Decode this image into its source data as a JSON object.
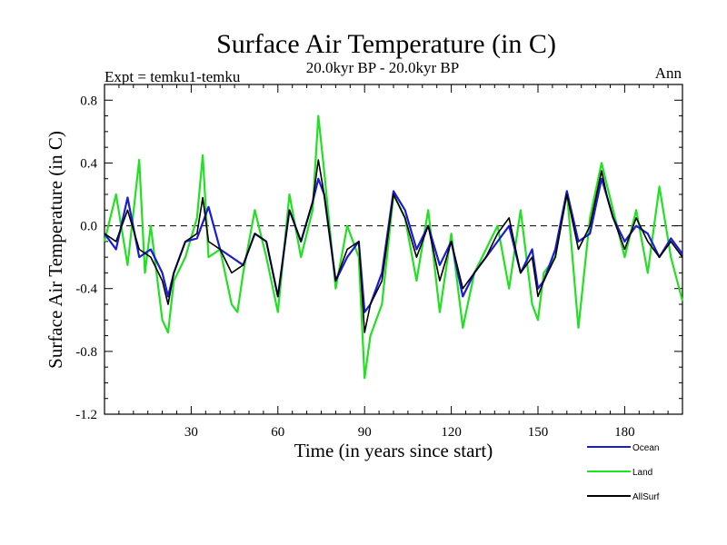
{
  "chart_data": {
    "type": "line",
    "title": "Surface Air Temperature (in C)",
    "subtitle_left": "Expt = temku1-temku",
    "subtitle_center": "20.0kyr BP - 20.0kyr BP",
    "subtitle_right": "Ann",
    "xlabel": "Time (in years since start)",
    "ylabel": "Surface Air Temperature (in C)",
    "xlim": [
      0,
      200
    ],
    "ylim": [
      -1.2,
      0.9
    ],
    "xticks": [
      30,
      60,
      90,
      120,
      150,
      180
    ],
    "xtick_labels": [
      "30",
      "60",
      "90",
      "120",
      "150",
      "180"
    ],
    "yticks": [
      0.8,
      0.4,
      0.0,
      -0.4,
      -0.8,
      -1.2
    ],
    "ytick_labels": [
      "0.8",
      "0.4",
      "0.0",
      "-0.4",
      "-0.8",
      "-1.2"
    ],
    "zero_line": true,
    "legend_position": "bottom-right",
    "series": [
      {
        "name": "Ocean",
        "color": "#1a1ad8",
        "x": [
          0,
          4,
          8,
          12,
          16,
          20,
          22,
          24,
          28,
          32,
          36,
          40,
          44,
          48,
          52,
          56,
          60,
          64,
          68,
          72,
          74,
          76,
          80,
          84,
          88,
          90,
          92,
          96,
          100,
          104,
          108,
          112,
          116,
          120,
          124,
          128,
          132,
          136,
          140,
          144,
          148,
          150,
          152,
          156,
          160,
          164,
          168,
          172,
          174,
          176,
          180,
          184,
          188,
          192,
          196,
          200
        ],
        "y": [
          -0.05,
          -0.15,
          0.18,
          -0.2,
          -0.15,
          -0.3,
          -0.45,
          -0.3,
          -0.1,
          -0.08,
          0.12,
          -0.15,
          -0.2,
          -0.25,
          -0.05,
          -0.1,
          -0.45,
          0.1,
          -0.1,
          0.15,
          0.3,
          0.2,
          -0.35,
          -0.2,
          -0.1,
          -0.55,
          -0.5,
          -0.3,
          0.22,
          0.1,
          -0.15,
          0.0,
          -0.25,
          -0.1,
          -0.45,
          -0.3,
          -0.2,
          -0.1,
          0.0,
          -0.3,
          -0.15,
          -0.4,
          -0.35,
          -0.15,
          0.22,
          -0.1,
          -0.05,
          0.3,
          0.18,
          0.05,
          -0.1,
          0.0,
          -0.05,
          -0.2,
          -0.08,
          -0.18
        ]
      },
      {
        "name": "Land",
        "color": "#22e022",
        "x": [
          0,
          4,
          8,
          12,
          14,
          16,
          20,
          22,
          24,
          28,
          32,
          34,
          36,
          40,
          44,
          46,
          48,
          52,
          56,
          60,
          64,
          68,
          72,
          74,
          76,
          80,
          84,
          88,
          90,
          92,
          96,
          100,
          104,
          108,
          112,
          116,
          120,
          124,
          128,
          132,
          136,
          140,
          144,
          148,
          150,
          152,
          156,
          160,
          164,
          168,
          172,
          174,
          176,
          180,
          184,
          188,
          192,
          196,
          200
        ],
        "y": [
          -0.1,
          0.2,
          -0.25,
          0.42,
          -0.3,
          0.0,
          -0.6,
          -0.68,
          -0.35,
          -0.2,
          0.05,
          0.45,
          -0.2,
          -0.15,
          -0.5,
          -0.55,
          -0.3,
          0.1,
          -0.2,
          -0.55,
          0.2,
          -0.2,
          0.1,
          0.7,
          0.35,
          -0.4,
          0.0,
          -0.2,
          -0.97,
          -0.7,
          -0.5,
          0.2,
          0.05,
          -0.35,
          0.1,
          -0.55,
          -0.05,
          -0.65,
          -0.3,
          -0.15,
          0.0,
          -0.4,
          0.1,
          -0.5,
          -0.6,
          -0.3,
          -0.2,
          0.22,
          -0.65,
          0.05,
          0.4,
          0.25,
          0.1,
          -0.2,
          0.1,
          -0.3,
          0.25,
          -0.2,
          -0.48
        ]
      },
      {
        "name": "AllSurf",
        "color": "#000000",
        "x": [
          0,
          4,
          8,
          12,
          16,
          20,
          22,
          24,
          28,
          32,
          34,
          36,
          40,
          44,
          48,
          52,
          56,
          60,
          64,
          68,
          72,
          74,
          76,
          80,
          84,
          88,
          90,
          92,
          96,
          100,
          104,
          108,
          112,
          116,
          120,
          124,
          128,
          132,
          136,
          140,
          144,
          148,
          150,
          152,
          156,
          160,
          164,
          168,
          172,
          174,
          176,
          180,
          184,
          188,
          192,
          196,
          200
        ],
        "y": [
          -0.05,
          -0.1,
          0.1,
          -0.15,
          -0.2,
          -0.35,
          -0.5,
          -0.3,
          -0.1,
          -0.05,
          0.18,
          -0.1,
          -0.15,
          -0.3,
          -0.25,
          -0.05,
          -0.1,
          -0.45,
          0.1,
          -0.1,
          0.15,
          0.42,
          0.2,
          -0.35,
          -0.15,
          -0.1,
          -0.68,
          -0.5,
          -0.35,
          0.2,
          0.05,
          -0.2,
          0.0,
          -0.35,
          -0.1,
          -0.4,
          -0.3,
          -0.2,
          -0.05,
          0.05,
          -0.3,
          -0.2,
          -0.45,
          -0.35,
          -0.2,
          0.2,
          -0.15,
          0.0,
          0.35,
          0.18,
          0.05,
          -0.15,
          0.05,
          -0.1,
          -0.2,
          -0.1,
          -0.2
        ]
      }
    ]
  }
}
